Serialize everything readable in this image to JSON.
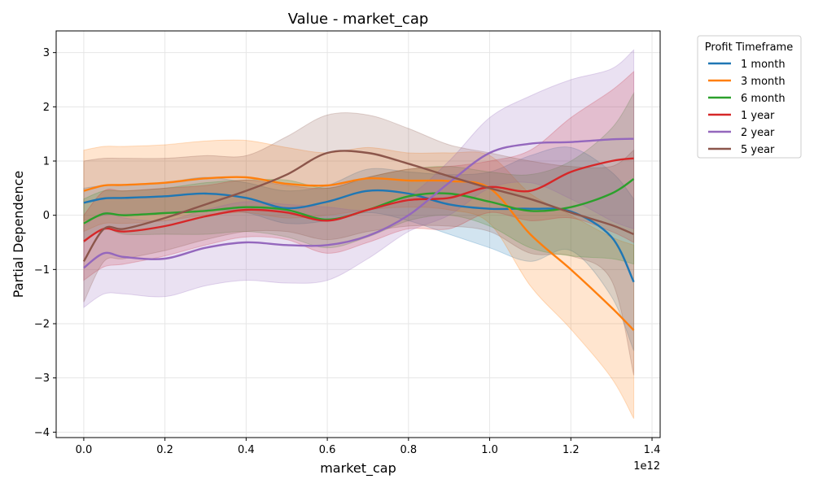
{
  "chart_data": {
    "type": "line",
    "title": "Value - market_cap",
    "xlabel": "market_cap",
    "ylabel": "Partial Dependence",
    "x_offset_label": "1e12",
    "xlim": [
      -0.068,
      1.42
    ],
    "ylim": [
      -4.1,
      3.4
    ],
    "x_ticks": [
      0.0,
      0.2,
      0.4,
      0.6,
      0.8,
      1.0,
      1.2,
      1.4
    ],
    "x_tick_labels": [
      "0.0",
      "0.2",
      "0.4",
      "0.6",
      "0.8",
      "1.0",
      "1.2",
      "1.4"
    ],
    "y_ticks": [
      -4,
      -3,
      -2,
      -1,
      0,
      1,
      2,
      3
    ],
    "y_tick_labels": [
      "−4",
      "−3",
      "−2",
      "−1",
      "0",
      "1",
      "2",
      "3"
    ],
    "grid": true,
    "legend_title": "Profit Timeframe",
    "legend_position": "outside-right",
    "x": [
      0.0,
      0.05,
      0.1,
      0.2,
      0.3,
      0.4,
      0.5,
      0.6,
      0.7,
      0.8,
      0.9,
      1.0,
      1.1,
      1.2,
      1.3,
      1.355
    ],
    "series": [
      {
        "name": "1 month",
        "color": "#1f77b4",
        "values": [
          0.23,
          0.31,
          0.32,
          0.35,
          0.4,
          0.32,
          0.13,
          0.25,
          0.45,
          0.4,
          0.2,
          0.12,
          0.12,
          0.07,
          -0.4,
          -1.23
        ],
        "lower": [
          -0.1,
          0.0,
          0.02,
          0.05,
          0.1,
          0.05,
          -0.15,
          -0.1,
          0.05,
          -0.1,
          -0.35,
          -0.6,
          -0.85,
          -0.65,
          -1.5,
          -2.5
        ],
        "upper": [
          0.5,
          0.55,
          0.55,
          0.6,
          0.7,
          0.6,
          0.45,
          0.55,
          0.85,
          0.8,
          0.75,
          0.8,
          1.1,
          1.25,
          0.8,
          0.3
        ]
      },
      {
        "name": "3 month",
        "color": "#ff7f0e",
        "values": [
          0.45,
          0.55,
          0.56,
          0.6,
          0.68,
          0.7,
          0.58,
          0.55,
          0.68,
          0.64,
          0.63,
          0.5,
          -0.35,
          -1.0,
          -1.7,
          -2.12
        ],
        "lower": [
          -0.3,
          -0.15,
          -0.15,
          -0.1,
          0.0,
          0.05,
          -0.05,
          0.0,
          0.1,
          0.15,
          0.1,
          -0.15,
          -1.3,
          -2.1,
          -3.0,
          -3.75
        ],
        "upper": [
          1.2,
          1.27,
          1.27,
          1.3,
          1.37,
          1.38,
          1.25,
          1.15,
          1.25,
          1.15,
          1.15,
          1.1,
          0.4,
          0.0,
          -0.4,
          -0.55
        ]
      },
      {
        "name": "6 month",
        "color": "#2ca02c",
        "values": [
          -0.15,
          0.03,
          0.0,
          0.04,
          0.08,
          0.15,
          0.1,
          -0.08,
          0.1,
          0.35,
          0.4,
          0.25,
          0.08,
          0.15,
          0.4,
          0.67
        ],
        "lower": [
          -0.5,
          -0.25,
          -0.35,
          -0.35,
          -0.35,
          -0.3,
          -0.4,
          -0.6,
          -0.4,
          -0.1,
          0.0,
          -0.2,
          -0.6,
          -0.75,
          -0.8,
          -0.9
        ],
        "upper": [
          0.3,
          0.45,
          0.45,
          0.5,
          0.6,
          0.65,
          0.65,
          0.5,
          0.7,
          0.85,
          0.9,
          0.8,
          0.75,
          1.0,
          1.6,
          2.25
        ]
      },
      {
        "name": "1 year",
        "color": "#d62728",
        "values": [
          -0.48,
          -0.25,
          -0.3,
          -0.2,
          -0.02,
          0.1,
          0.05,
          -0.1,
          0.1,
          0.28,
          0.32,
          0.52,
          0.45,
          0.8,
          1.0,
          1.05
        ],
        "lower": [
          -1.2,
          -0.95,
          -0.9,
          -0.75,
          -0.55,
          -0.4,
          -0.45,
          -0.7,
          -0.5,
          -0.25,
          -0.25,
          0.05,
          -0.1,
          -0.05,
          -0.3,
          -0.5
        ],
        "upper": [
          0.0,
          0.45,
          0.45,
          0.5,
          0.55,
          0.65,
          0.55,
          0.5,
          0.7,
          0.85,
          0.9,
          1.0,
          1.2,
          1.8,
          2.3,
          2.65
        ]
      },
      {
        "name": "2 year",
        "color": "#9467bd",
        "values": [
          -0.97,
          -0.7,
          -0.77,
          -0.8,
          -0.6,
          -0.5,
          -0.55,
          -0.55,
          -0.38,
          0.0,
          0.6,
          1.15,
          1.32,
          1.35,
          1.4,
          1.41
        ],
        "lower": [
          -1.7,
          -1.45,
          -1.45,
          -1.5,
          -1.3,
          -1.2,
          -1.25,
          -1.2,
          -0.8,
          -0.3,
          0.0,
          0.5,
          0.6,
          0.3,
          -0.1,
          -0.25
        ],
        "upper": [
          -0.2,
          0.05,
          -0.05,
          -0.1,
          0.1,
          0.25,
          0.2,
          0.15,
          0.1,
          0.35,
          1.0,
          1.8,
          2.2,
          2.5,
          2.7,
          3.05
        ]
      },
      {
        "name": "5 year",
        "color": "#8c564b",
        "values": [
          -0.85,
          -0.25,
          -0.25,
          -0.05,
          0.2,
          0.45,
          0.75,
          1.15,
          1.15,
          0.95,
          0.72,
          0.5,
          0.3,
          0.05,
          -0.18,
          -0.35
        ],
        "lower": [
          -1.6,
          -0.85,
          -0.8,
          -0.65,
          -0.45,
          -0.3,
          -0.3,
          -0.45,
          -0.3,
          -0.2,
          -0.2,
          -0.3,
          -0.7,
          -0.75,
          -1.2,
          -2.95
        ],
        "upper": [
          1.0,
          1.05,
          1.05,
          1.05,
          1.1,
          1.1,
          1.45,
          1.85,
          1.85,
          1.6,
          1.3,
          1.15,
          1.0,
          0.9,
          0.9,
          1.2
        ]
      }
    ]
  }
}
